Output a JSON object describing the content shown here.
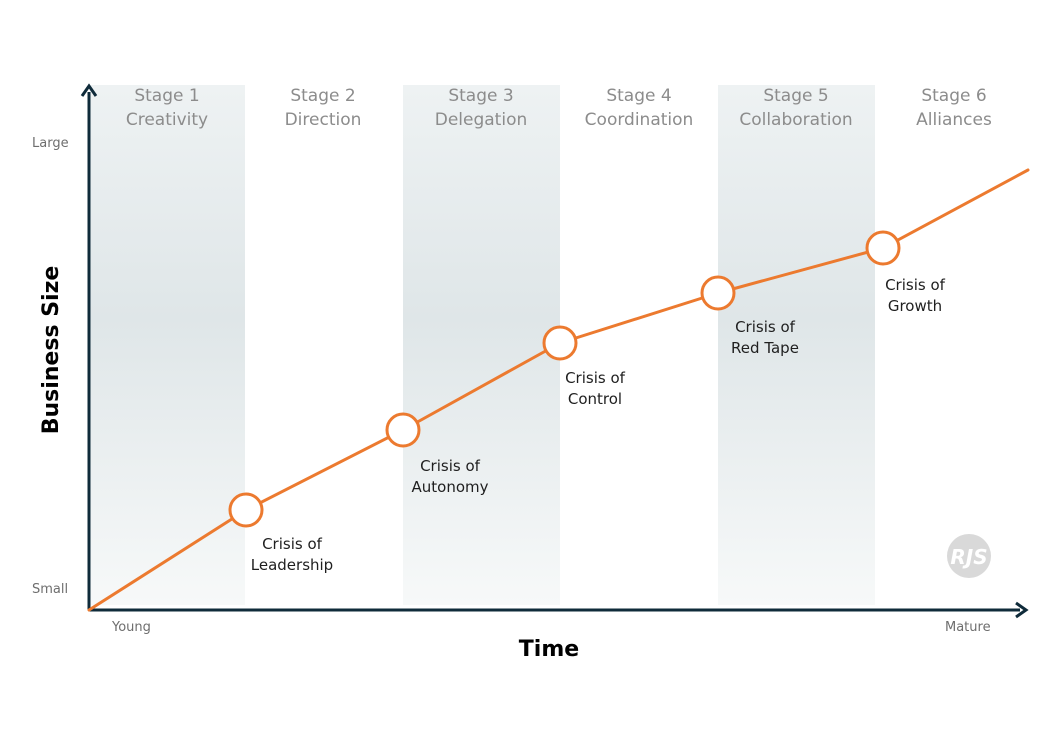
{
  "stages": [
    {
      "number": "Stage 1",
      "name": "Creativity"
    },
    {
      "number": "Stage 2",
      "name": "Direction"
    },
    {
      "number": "Stage 3",
      "name": "Delegation"
    },
    {
      "number": "Stage 4",
      "name": "Coordination"
    },
    {
      "number": "Stage 5",
      "name": "Collaboration"
    },
    {
      "number": "Stage 6",
      "name": "Alliances"
    }
  ],
  "crises": [
    {
      "line1": "Crisis of",
      "line2": "Leadership"
    },
    {
      "line1": "Crisis of",
      "line2": "Autonomy"
    },
    {
      "line1": "Crisis of",
      "line2": "Control"
    },
    {
      "line1": "Crisis of",
      "line2": "Red Tape"
    },
    {
      "line1": "Crisis of",
      "line2": "Growth"
    }
  ],
  "axes": {
    "x_title": "Time",
    "y_title": "Business Size",
    "x_start": "Young",
    "x_end": "Mature",
    "y_top": "Large",
    "y_bottom": "Small"
  },
  "watermark": "RJS",
  "colors": {
    "growth_line": "#ec7a2f",
    "axis": "#0f2b3a",
    "band": "#e2e8ea",
    "stage_text": "#8c8c8c"
  }
}
